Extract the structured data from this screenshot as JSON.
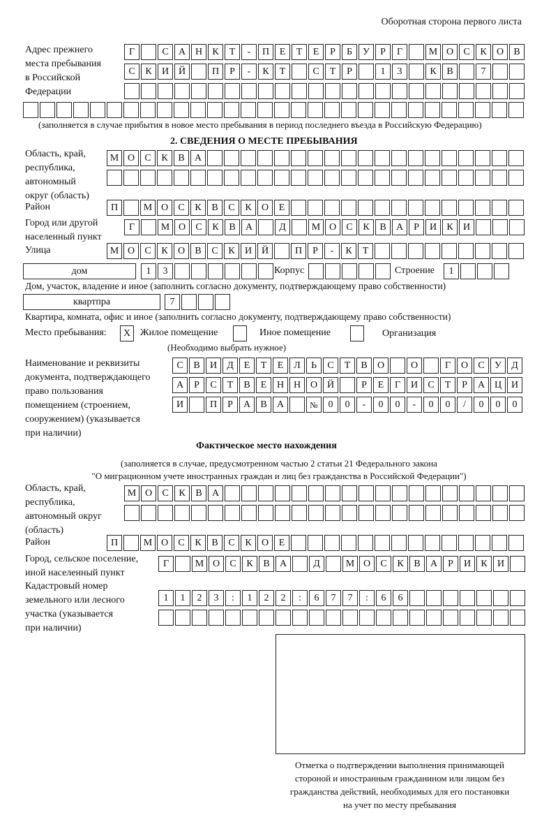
{
  "header": {
    "side_note": "Оборотная сторона первого листа"
  },
  "previous_address": {
    "label": [
      "Адрес прежнего",
      "места пребывания",
      "в Российской",
      "Федерации"
    ],
    "rows": [
      "Г САНКТ-ПЕТЕРБУРГ МОСКОВ",
      "СКИЙ ПР-КТ СТР 13 КВ 7  ",
      "                        ",
      "                              "
    ],
    "note": "(заполняется в случае прибытия в новое место пребывания в период последнего въезда в Российскую Федерацию)"
  },
  "section2": {
    "title": "2. СВЕДЕНИЯ О МЕСТЕ ПРЕБЫВАНИЯ",
    "region_label": [
      "Область, край,",
      "республика,",
      "автономный",
      "округ (область)"
    ],
    "region_rows": [
      "МОСКВА                   ",
      "                         "
    ],
    "district_label": "Район",
    "district_row": "П МОСКВСКОЕ              ",
    "city_label": [
      "Город или другой",
      "населенный пункт"
    ],
    "city_row": "Г МОСКВА Д МОСКВАРИКИ   ",
    "street_label": "Улица",
    "street_row": "МОСКОВСКИЙ ПР-КТ         ",
    "house_type": "дом",
    "house_row": "13      ",
    "building_label": "Корпус",
    "building_row": "     ",
    "structure_label": "Строение",
    "structure_row": "1   ",
    "house_note": "Дом, участок, владение и иное (заполнить согласно документу, подтверждающему право собственности)",
    "apartment_type": "квартпра",
    "apartment_row": "7   ",
    "apartment_note": "Квартира, комната, офис и иное (заполнить согласно документу, подтверждающему право собственности)",
    "place_label": "Место пребывания:",
    "place_options": [
      {
        "label": "Жилое помещение",
        "mark": "X"
      },
      {
        "label": "Иное помещение",
        "mark": ""
      },
      {
        "label": "Организация",
        "mark": ""
      }
    ],
    "place_note": "(Необходимо выбрать нужное)",
    "document_label": [
      "Наименование и реквизиты",
      "документа, подтверждающего",
      "право пользования",
      "помещением (строением,",
      "сооружением) (указывается",
      "при наличии)"
    ],
    "document_rows": [
      "СВИДЕТЕЛЬСТВО О ГОСУД",
      "АРСТВЕННОЙ РЕГИСТРАЦИ",
      "И ПРАВА №00-00-00/000"
    ]
  },
  "actual_location": {
    "title": "Фактическое место нахождения",
    "note": [
      "(заполняется в случае, предусмотренном частью 2 статьи 21 Федерального закона",
      "\"О миграционном учете иностранных граждан и лиц без гражданства в Российской Федерации\")"
    ],
    "region_label": [
      "Область, край,",
      "республика,",
      "автономный округ",
      "(область)"
    ],
    "region_rows": [
      "МОСКВА                  ",
      "                        "
    ],
    "district_label": "Район",
    "district_row": "П МОСКВСКОЕ              ",
    "city_label": [
      "Город, сельское поселение,",
      "иной населенный пункт"
    ],
    "city_row": "Г МОСКВА Д МОСКВАРИКИ ",
    "cadastral_label": [
      "Кадастровый номер",
      "земельного или лесного",
      "участка (указывается",
      "при наличии)"
    ],
    "cadastral_rows": [
      "1123:122:677:66       ",
      "                      "
    ]
  },
  "confirmation": {
    "caption": [
      "Отметка о подтверждении выполнения принимающей",
      "стороной и иностранным гражданином или лицом без",
      "гражданства действий, необходимых для его постановки",
      "на учет по месту пребывания"
    ]
  }
}
